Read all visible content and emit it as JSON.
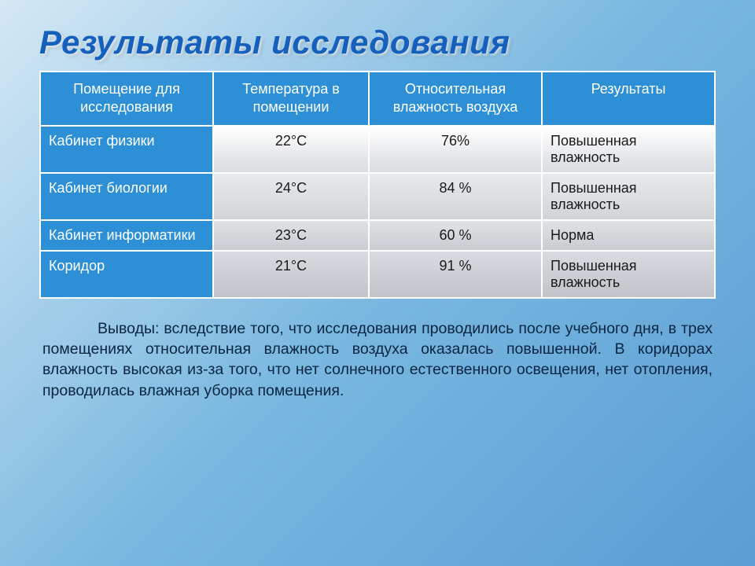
{
  "title": "Результаты исследования",
  "table": {
    "headers": [
      "Помещение для исследования",
      "Температура в помещении",
      "Относительная влажность воздуха",
      "Результаты"
    ],
    "header_bg": "#2d8fd6",
    "header_fg": "#ffffff",
    "label_bg": "#2d8fd6",
    "label_fg": "#ffffff",
    "border_color": "#ffffff",
    "font_size": 18,
    "rows": [
      {
        "label": "Кабинет физики",
        "temperature": "22°С",
        "humidity": "76%",
        "result": "Повышенная влажность",
        "row_bg_top": "#ffffff",
        "row_bg_bottom": "#d8dce0"
      },
      {
        "label": "Кабинет биологии",
        "temperature": "24°С",
        "humidity": "84 %",
        "result": "Повышенная влажность",
        "row_bg_top": "#e8ebed",
        "row_bg_bottom": "#d0d4d8"
      },
      {
        "label": "Кабинет информатики",
        "temperature": "23°С",
        "humidity": "60 %",
        "result": "Норма",
        "row_bg_top": "#e0e3e6",
        "row_bg_bottom": "#c8ccd0"
      },
      {
        "label": "Коридор",
        "temperature": "21°С",
        "humidity": "91 %",
        "result": "Повышенная влажность",
        "row_bg_top": "#d8dce0",
        "row_bg_bottom": "#c0c4c8"
      }
    ]
  },
  "conclusion": {
    "text": "Выводы: вследствие того, что исследования проводились после учебного дня, в трех помещениях относительная влажность воздуха оказалась повышенной. В коридорах влажность высокая из-за того, что нет солнечного естественного освещения, нет отопления, проводилась влажная уборка помещения.",
    "font_size": 19.5,
    "color": "#0a2540"
  },
  "styling": {
    "bg_gradient_start": "#d4e8f5",
    "bg_gradient_mid": "#7ab8e0",
    "bg_gradient_end": "#5a9dd4",
    "title_color": "#1560bd",
    "title_font_size": 42,
    "title_style": "bold italic"
  }
}
